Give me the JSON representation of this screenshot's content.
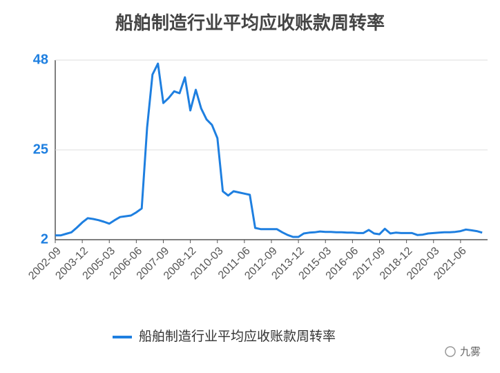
{
  "chart_data": {
    "type": "line",
    "title": "船舶制造行业平均应收账款周转率",
    "categories": [
      "2002-09",
      null,
      null,
      null,
      null,
      "2003-12",
      null,
      null,
      null,
      null,
      "2005-03",
      null,
      null,
      null,
      null,
      "2006-06",
      null,
      null,
      null,
      null,
      "2007-09",
      null,
      null,
      null,
      null,
      "2008-12",
      null,
      null,
      null,
      null,
      "2010-03",
      null,
      null,
      null,
      null,
      "2011-06",
      null,
      null,
      null,
      null,
      "2012-09",
      null,
      null,
      null,
      null,
      "2013-12",
      null,
      null,
      null,
      null,
      "2015-03",
      null,
      null,
      null,
      null,
      "2016-06",
      null,
      null,
      null,
      null,
      "2017-09",
      null,
      null,
      null,
      null,
      "2018-12",
      null,
      null,
      null,
      null,
      "2020-03",
      null,
      null,
      null,
      null,
      "2021-06",
      null,
      null,
      null,
      null
    ],
    "series": [
      {
        "name": "船舶制造行业平均应收账款周转率",
        "color": "#1e7fe0",
        "values": [
          3.1,
          3.1,
          3.5,
          3.9,
          5.1,
          6.4,
          7.5,
          7.3,
          7,
          6.6,
          6.1,
          7,
          7.8,
          8,
          8.2,
          9,
          10,
          30.7,
          44.3,
          47.1,
          37,
          38.3,
          40,
          39.5,
          43.6,
          35.1,
          40.4,
          35.6,
          32.8,
          31.4,
          28,
          14.4,
          13.3,
          14.4,
          14.1,
          13.8,
          13.5,
          5,
          4.7,
          4.7,
          4.7,
          4.7,
          3.9,
          3.2,
          2.7,
          2.7,
          3.6,
          3.8,
          3.9,
          4.1,
          4,
          4,
          3.9,
          3.9,
          3.8,
          3.8,
          3.7,
          3.7,
          4.5,
          3.6,
          3.4,
          4.8,
          3.6,
          3.8,
          3.7,
          3.7,
          3.7,
          3.2,
          3.3,
          3.6,
          3.7,
          3.8,
          3.9,
          3.9,
          4,
          4.2,
          4.6,
          4.4,
          4.2,
          3.8
        ]
      }
    ],
    "ylim": [
      2,
      48
    ],
    "yticks": [
      2,
      25,
      48
    ],
    "grid": true,
    "legend": "bottom",
    "watermark": "九雾"
  }
}
